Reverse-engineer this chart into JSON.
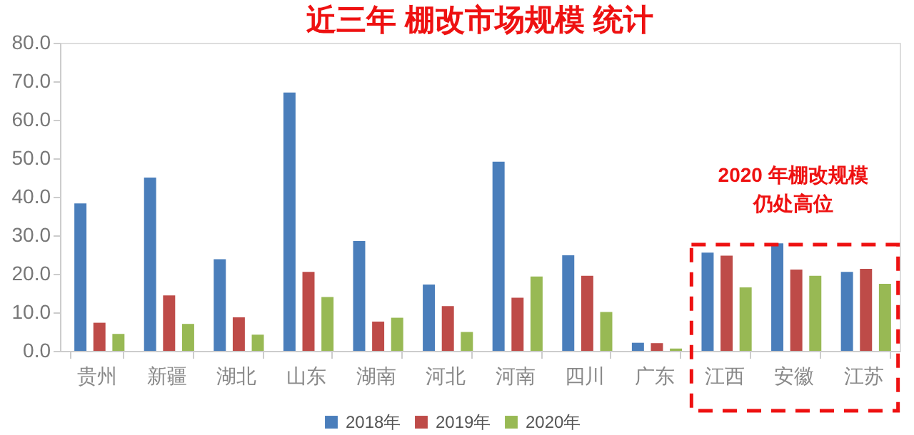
{
  "chart_data": {
    "type": "bar",
    "title": "近三年 棚改市场规模 统计",
    "categories": [
      "贵州",
      "新疆",
      "湖北",
      "山东",
      "湖南",
      "河北",
      "河南",
      "四川",
      "广东",
      "江西",
      "安徽",
      "江苏"
    ],
    "series": [
      {
        "name": "2018年",
        "color": "#4a7ebb",
        "values": [
          38.3,
          45.0,
          23.8,
          67.1,
          28.5,
          17.2,
          49.1,
          24.8,
          2.1,
          25.5,
          27.9,
          20.5
        ]
      },
      {
        "name": "2019年",
        "color": "#be4b48",
        "values": [
          7.3,
          14.4,
          8.7,
          20.5,
          7.6,
          11.6,
          13.8,
          19.5,
          2.0,
          24.7,
          21.1,
          21.3
        ]
      },
      {
        "name": "2020年",
        "color": "#98b954",
        "values": [
          4.4,
          7.0,
          4.2,
          14.0,
          8.6,
          4.9,
          19.3,
          10.1,
          0.6,
          16.5,
          19.5,
          17.4
        ]
      }
    ],
    "ylim": [
      0,
      80
    ],
    "yticks": [
      {
        "value": 0,
        "label": "0.0"
      },
      {
        "value": 10,
        "label": "10.0"
      },
      {
        "value": 20,
        "label": "20.0"
      },
      {
        "value": 30,
        "label": "30.0"
      },
      {
        "value": 40,
        "label": "40.0"
      },
      {
        "value": 50,
        "label": "50.0"
      },
      {
        "value": 60,
        "label": "60.0"
      },
      {
        "value": 70,
        "label": "70.0"
      },
      {
        "value": 80,
        "label": "80.0"
      }
    ],
    "annotations": [
      "2020 年棚改规模",
      "仍处高位"
    ],
    "grid": false,
    "legend": "bottom"
  }
}
